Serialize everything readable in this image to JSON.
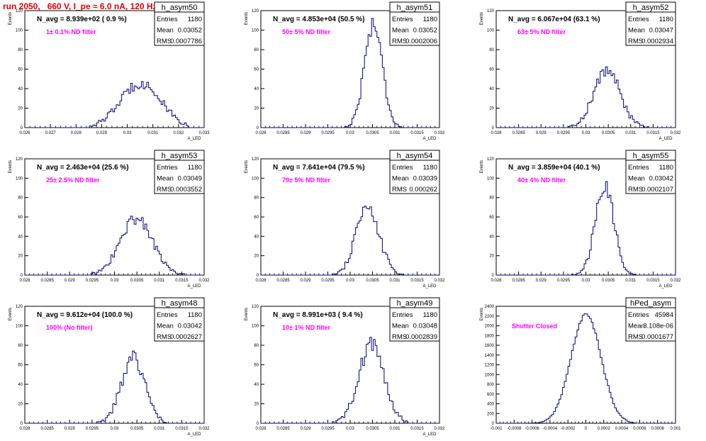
{
  "header": {
    "title": "run 2050,   660 V, I_pe ≈ 6.0 nA, 120 Hz"
  },
  "colors": {
    "title": "#e00000",
    "annotation": "#ff00ff",
    "histogram": "#000080",
    "axis": "#000000"
  },
  "chart_data": [
    {
      "type": "histogram",
      "hist_name": "h_asym50",
      "label": "N_avg = 8.939e+02 ( 0.9 %)",
      "annotation": "1± 0.1% ND filter",
      "stats": {
        "entries_label": "Entries",
        "entries": "1180",
        "mean_label": "Mean",
        "mean": "0.03052",
        "rms_label": "RMS",
        "rms": "0.0007786"
      },
      "ylabel": "Events",
      "xlabel": "A_LED",
      "xlim": [
        0.026,
        0.033
      ],
      "ylim": [
        0,
        120
      ],
      "xticks": [
        "0.026",
        "0.027",
        "0.028",
        "0.029",
        "0.03",
        "0.031",
        "0.032",
        "0.033"
      ],
      "yticks": [
        "0",
        "20",
        "40",
        "60",
        "80",
        "100",
        "120"
      ],
      "dist": {
        "mean": 0.03052,
        "rms": 0.0007786,
        "peak": 46,
        "range": [
          0.0285,
          0.0324
        ]
      }
    },
    {
      "type": "histogram",
      "hist_name": "h_asym51",
      "label": "N_avg = 4.853e+04 (50.5 %)",
      "annotation": "50± 5% ND filter",
      "stats": {
        "entries_label": "Entries",
        "entries": "1180",
        "mean_label": "Mean",
        "mean": "0.03052",
        "rms_label": "RMS",
        "rms": "0.0002006"
      },
      "ylabel": "Events",
      "xlabel": "A_LED",
      "xlim": [
        0.028,
        0.032
      ],
      "ylim": [
        0,
        120
      ],
      "xticks": [
        "0.028",
        "0.0285",
        "0.029",
        "0.0295",
        "0.03",
        "0.0305",
        "0.031",
        "0.0315",
        "0.032"
      ],
      "yticks": [
        "0",
        "20",
        "40",
        "60",
        "80",
        "100",
        "120"
      ],
      "dist": {
        "mean": 0.03052,
        "rms": 0.0002006,
        "peak": 107,
        "range": [
          0.0298,
          0.0312
        ]
      }
    },
    {
      "type": "histogram",
      "hist_name": "h_asym52",
      "label": "N_avg = 6.067e+04 (63.1 %)",
      "annotation": "63± 5% ND filter",
      "stats": {
        "entries_label": "Entries",
        "entries": "1180",
        "mean_label": "Mean",
        "mean": "0.03047",
        "rms_label": "RMS",
        "rms": "0.0002934"
      },
      "ylabel": "Events",
      "xlabel": "A_LED",
      "xlim": [
        0.028,
        0.032
      ],
      "ylim": [
        0,
        120
      ],
      "xticks": [
        "0.028",
        "0.0285",
        "0.029",
        "0.0295",
        "0.03",
        "0.0305",
        "0.031",
        "0.0315",
        "0.032"
      ],
      "yticks": [
        "0",
        "20",
        "40",
        "60",
        "80",
        "100",
        "120"
      ],
      "dist": {
        "mean": 0.03047,
        "rms": 0.0002934,
        "peak": 59,
        "range": [
          0.0296,
          0.0314
        ]
      }
    },
    {
      "type": "histogram",
      "hist_name": "h_asym53",
      "label": "N_avg = 2.463e+04 (25.6 %)",
      "annotation": "25± 2.5% ND filter",
      "stats": {
        "entries_label": "Entries",
        "entries": "1180",
        "mean_label": "Mean",
        "mean": "0.03049",
        "rms_label": "RMS",
        "rms": "0.0003552"
      },
      "ylabel": "Events",
      "xlabel": "A_LED",
      "xlim": [
        0.028,
        0.032
      ],
      "ylim": [
        0,
        120
      ],
      "xticks": [
        "0.028",
        "0.0285",
        "0.029",
        "0.0295",
        "0.03",
        "0.0305",
        "0.031",
        "0.0315",
        "0.032"
      ],
      "yticks": [
        "0",
        "20",
        "40",
        "60",
        "80",
        "100",
        "120"
      ],
      "dist": {
        "mean": 0.03049,
        "rms": 0.0003552,
        "peak": 59,
        "range": [
          0.0295,
          0.0316
        ]
      }
    },
    {
      "type": "histogram",
      "hist_name": "h_asym54",
      "label": "N_avg = 7.641e+04 (79.5 %)",
      "annotation": "79± 5% ND filter",
      "stats": {
        "entries_label": "Entries",
        "entries": "1180",
        "mean_label": "Mean",
        "mean": "0.03039",
        "rms_label": "RMS",
        "rms": "0.000262"
      },
      "ylabel": "Events",
      "xlabel": "A_LED",
      "xlim": [
        0.028,
        0.032
      ],
      "ylim": [
        0,
        120
      ],
      "xticks": [
        "0.028",
        "0.0285",
        "0.029",
        "0.0295",
        "0.03",
        "0.0305",
        "0.031",
        "0.0315",
        "0.032"
      ],
      "yticks": [
        "0",
        "20",
        "40",
        "60",
        "80",
        "100",
        "120"
      ],
      "dist": {
        "mean": 0.03039,
        "rms": 0.000262,
        "peak": 68,
        "range": [
          0.0296,
          0.0312
        ]
      }
    },
    {
      "type": "histogram",
      "hist_name": "h_asym55",
      "label": "N_avg = 3.859e+04 (40.1 %)",
      "annotation": "40± 4% ND filter",
      "stats": {
        "entries_label": "Entries",
        "entries": "1180",
        "mean_label": "Mean",
        "mean": "0.03042",
        "rms_label": "RMS",
        "rms": "0.0002107"
      },
      "ylabel": "Events",
      "xlabel": "A_LED",
      "xlim": [
        0.028,
        0.032
      ],
      "ylim": [
        0,
        120
      ],
      "xticks": [
        "0.028",
        "0.0285",
        "0.029",
        "0.0295",
        "0.03",
        "0.0305",
        "0.031",
        "0.0315",
        "0.032"
      ],
      "yticks": [
        "0",
        "20",
        "40",
        "60",
        "80",
        "100",
        "120"
      ],
      "dist": {
        "mean": 0.03042,
        "rms": 0.0002107,
        "peak": 90,
        "range": [
          0.0297,
          0.0312
        ]
      }
    },
    {
      "type": "histogram",
      "hist_name": "h_asym48",
      "label": "N_avg = 9.612e+04 (100.0 %)",
      "annotation": "100% (No filter)",
      "stats": {
        "entries_label": "Entries",
        "entries": "1180",
        "mean_label": "Mean",
        "mean": "0.03042",
        "rms_label": "RMS",
        "rms": "0.0002627"
      },
      "ylabel": "Events",
      "xlabel": "A_LED",
      "xlim": [
        0.028,
        0.032
      ],
      "ylim": [
        0,
        120
      ],
      "xticks": [
        "0.028",
        "0.0285",
        "0.029",
        "0.0295",
        "0.03",
        "0.0305",
        "0.031",
        "0.0315",
        "0.032"
      ],
      "yticks": [
        "0",
        "20",
        "40",
        "60",
        "80",
        "100",
        "120"
      ],
      "dist": {
        "mean": 0.03042,
        "rms": 0.0002627,
        "peak": 67,
        "range": [
          0.0296,
          0.0312
        ]
      }
    },
    {
      "type": "histogram",
      "hist_name": "h_asym49",
      "label": "N_avg = 8.991e+03 ( 9.4 %)",
      "annotation": "10± 1% ND filter",
      "stats": {
        "entries_label": "Entries",
        "entries": "1180",
        "mean_label": "Mean",
        "mean": "0.03048",
        "rms_label": "RMS",
        "rms": "0.0002839"
      },
      "ylabel": "Events",
      "xlabel": "A_LED",
      "xlim": [
        0.028,
        0.032
      ],
      "ylim": [
        0,
        120
      ],
      "xticks": [
        "0.028",
        "0.0285",
        "0.029",
        "0.0295",
        "0.03",
        "0.0305",
        "0.031",
        "0.0315",
        "0.032"
      ],
      "yticks": [
        "0",
        "20",
        "40",
        "60",
        "80",
        "100",
        "120"
      ],
      "dist": {
        "mean": 0.03048,
        "rms": 0.0002839,
        "peak": 81,
        "range": [
          0.0296,
          0.0313
        ]
      }
    },
    {
      "type": "histogram",
      "hist_name": "hPed_asym",
      "label": "",
      "annotation": "Shutter Closed",
      "stats": {
        "entries_label": "Entries",
        "entries": "45984",
        "mean_label": "Mean",
        "mean": "3.108e-06",
        "rms_label": "RMS",
        "rms": "0.0001677"
      },
      "ylabel": "Events",
      "xlabel": "",
      "xlim": [
        -0.001,
        0.001
      ],
      "ylim": [
        0,
        2400
      ],
      "xticks": [
        "-0.001",
        "-0.0008",
        "-0.0006",
        "-0.0004",
        "-0.0002",
        "0",
        "0.0002",
        "0.0004",
        "0.0006",
        "0.0008",
        "0.001"
      ],
      "yticks": [
        "0",
        "200",
        "400",
        "600",
        "800",
        "1000",
        "1200",
        "1400",
        "1600",
        "1800",
        "2000",
        "2200",
        "2400"
      ],
      "dist": {
        "mean": 3.108e-06,
        "rms": 0.0001677,
        "peak": 2220,
        "range": [
          -0.00075,
          0.00055
        ]
      }
    }
  ]
}
